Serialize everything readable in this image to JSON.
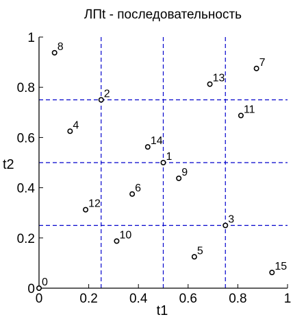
{
  "chart_data": {
    "type": "scatter",
    "title": "ЛПt - последовательность",
    "xlabel": "t1",
    "ylabel": "t2",
    "xlim": [
      0,
      1
    ],
    "ylim": [
      0,
      1
    ],
    "xticks": [
      "0",
      "0.2",
      "0.4",
      "0.6",
      "0.8",
      "1"
    ],
    "yticks": [
      "0",
      "0.2",
      "0.4",
      "0.6",
      "0.8",
      "1"
    ],
    "gridlines": [
      0.25,
      0.5,
      0.75
    ],
    "grid_style": "dashed",
    "colors": {
      "grid": "#0000cc",
      "points": "#000000",
      "axis": "#000000"
    },
    "points": [
      {
        "label": "0",
        "x": 0.0,
        "y": 0.0
      },
      {
        "label": "1",
        "x": 0.5,
        "y": 0.5
      },
      {
        "label": "2",
        "x": 0.25,
        "y": 0.75
      },
      {
        "label": "3",
        "x": 0.75,
        "y": 0.25
      },
      {
        "label": "4",
        "x": 0.125,
        "y": 0.625
      },
      {
        "label": "5",
        "x": 0.625,
        "y": 0.125
      },
      {
        "label": "6",
        "x": 0.375,
        "y": 0.375
      },
      {
        "label": "7",
        "x": 0.875,
        "y": 0.875
      },
      {
        "label": "8",
        "x": 0.0625,
        "y": 0.9375
      },
      {
        "label": "9",
        "x": 0.5625,
        "y": 0.4375
      },
      {
        "label": "10",
        "x": 0.3125,
        "y": 0.1875
      },
      {
        "label": "11",
        "x": 0.8125,
        "y": 0.6875
      },
      {
        "label": "12",
        "x": 0.1875,
        "y": 0.3125
      },
      {
        "label": "13",
        "x": 0.6875,
        "y": 0.8125
      },
      {
        "label": "14",
        "x": 0.4375,
        "y": 0.5625
      },
      {
        "label": "15",
        "x": 0.9375,
        "y": 0.0625
      }
    ]
  }
}
